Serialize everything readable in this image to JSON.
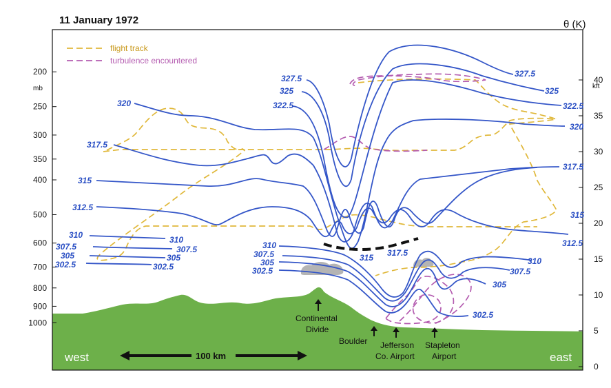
{
  "title": "11 January 1972",
  "right_axis_title": "θ (K)",
  "left_axis": {
    "unit": "mb",
    "ticks": [
      {
        "label": "200",
        "value": 200
      },
      {
        "label": "250",
        "value": 250
      },
      {
        "label": "300",
        "value": 300
      },
      {
        "label": "350",
        "value": 350
      },
      {
        "label": "400",
        "value": 400
      },
      {
        "label": "500",
        "value": 500
      },
      {
        "label": "600",
        "value": 600
      },
      {
        "label": "700",
        "value": 700
      },
      {
        "label": "800",
        "value": 800
      },
      {
        "label": "900",
        "value": 900
      },
      {
        "label": "1000",
        "value": 1000
      }
    ]
  },
  "right_axis": {
    "unit": "kft",
    "ticks": [
      {
        "label": "40",
        "value": 40
      },
      {
        "label": "35",
        "value": 35
      },
      {
        "label": "30",
        "value": 30
      },
      {
        "label": "25",
        "value": 25
      },
      {
        "label": "20",
        "value": 20
      },
      {
        "label": "15",
        "value": 15
      },
      {
        "label": "10",
        "value": 10
      },
      {
        "label": "5",
        "value": 5
      },
      {
        "label": "0",
        "value": 0
      }
    ]
  },
  "legend": {
    "flight_track": "flight track",
    "turbulence": "turbulence encountered"
  },
  "colors": {
    "isentrope": "#3456c8",
    "flight_track": "#e0b83a",
    "turbulence": "#b45cb0",
    "terrain": "#6db04a",
    "cloud": "#b4b4b4",
    "frame": "#111111"
  },
  "isentrope_labels": {
    "left": [
      "320",
      "317.5",
      "315",
      "312.5",
      "310",
      "307.5",
      "305",
      "302.5"
    ],
    "left_center": [
      "310",
      "307.5",
      "305",
      "302.5"
    ],
    "center_top": [
      "327.5",
      "325",
      "322.5"
    ],
    "center_low": [
      "310",
      "307.5",
      "305",
      "302.5"
    ],
    "mid": [
      "315",
      "317.5"
    ],
    "right_top": [
      "327.5",
      "325",
      "322.5",
      "320"
    ],
    "right": [
      "317.5",
      "315",
      "312.5"
    ],
    "right_low": [
      "310",
      "307.5",
      "305",
      "302.5"
    ]
  },
  "places": {
    "continental_divide": "Continental Divide",
    "boulder": "Boulder",
    "jefferson": "Jefferson Co. Airport",
    "stapleton": "Stapleton Airport"
  },
  "directions": {
    "west": "west",
    "east": "east"
  },
  "scale_bar": "100 km"
}
